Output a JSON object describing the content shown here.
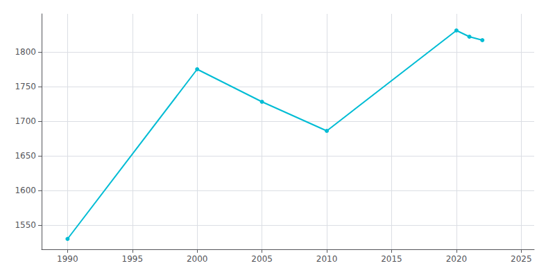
{
  "chart_data": {
    "type": "line",
    "x": [
      1990,
      2000,
      2005,
      2010,
      2020,
      2021,
      2022
    ],
    "values": [
      1530,
      1775,
      1728,
      1686,
      1831,
      1822,
      1817
    ],
    "color": "#00BCD4",
    "marker": "circle",
    "xlim": [
      1988,
      2026
    ],
    "ylim": [
      1515,
      1855
    ],
    "xticks": [
      1990,
      1995,
      2000,
      2005,
      2010,
      2015,
      2020,
      2025
    ],
    "yticks": [
      1550,
      1600,
      1650,
      1700,
      1750,
      1800
    ],
    "grid": true
  }
}
